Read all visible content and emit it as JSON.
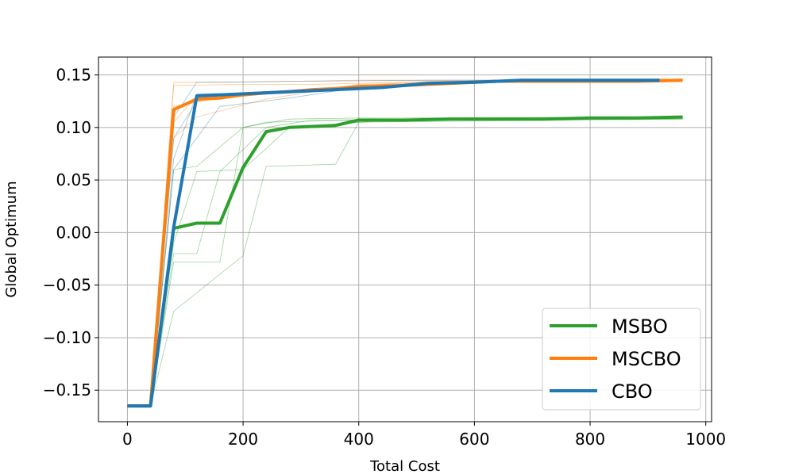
{
  "chart_data": {
    "type": "line",
    "xlabel": "Total Cost",
    "ylabel": "Global Optimum",
    "xlim": [
      -50,
      1010
    ],
    "ylim": [
      -0.18,
      0.167
    ],
    "x_ticks": [
      0,
      200,
      400,
      600,
      800,
      1000
    ],
    "x_tick_labels": [
      "0",
      "200",
      "400",
      "600",
      "800",
      "1000"
    ],
    "y_ticks": [
      -0.15,
      -0.1,
      -0.05,
      0.0,
      0.05,
      0.1,
      0.15
    ],
    "y_tick_labels": [
      "−0.15",
      "−0.10",
      "−0.05",
      "0.00",
      "0.05",
      "0.10",
      "0.15"
    ],
    "grid": true,
    "legend_position": "lower-right",
    "series": [
      {
        "name": "MSBO",
        "color": "#2ca02c",
        "x": [
          0,
          40,
          80,
          120,
          160,
          200,
          240,
          280,
          320,
          360,
          400,
          480,
          560,
          640,
          720,
          800,
          880,
          960
        ],
        "y": [
          -0.165,
          -0.165,
          0.004,
          0.009,
          0.009,
          0.062,
          0.096,
          0.1,
          0.101,
          0.102,
          0.107,
          0.107,
          0.108,
          0.108,
          0.108,
          0.109,
          0.109,
          0.11
        ]
      },
      {
        "name": "MSCBO",
        "color": "#ff7f0e",
        "x": [
          0,
          40,
          80,
          120,
          160,
          200,
          240,
          280,
          320,
          360,
          400,
          480,
          560,
          640,
          720,
          800,
          880,
          960
        ],
        "y": [
          -0.165,
          -0.165,
          0.117,
          0.127,
          0.128,
          0.131,
          0.133,
          0.134,
          0.136,
          0.137,
          0.139,
          0.14,
          0.142,
          0.144,
          0.144,
          0.144,
          0.144,
          0.145
        ]
      },
      {
        "name": "CBO",
        "color": "#1f77b4",
        "x": [
          0,
          40,
          80,
          120,
          200,
          280,
          360,
          400,
          440,
          520,
          600,
          680,
          760,
          840,
          920
        ],
        "y": [
          -0.165,
          -0.165,
          0.005,
          0.13,
          0.132,
          0.134,
          0.136,
          0.137,
          0.138,
          0.142,
          0.143,
          0.145,
          0.145,
          0.145,
          0.145
        ]
      }
    ],
    "faint_runs": [
      {
        "color": "#2ca02c",
        "x": [
          0,
          40,
          80,
          120,
          200,
          240,
          400,
          960
        ],
        "y": [
          -0.165,
          -0.165,
          0.06,
          0.063,
          0.1,
          0.105,
          0.107,
          0.108
        ]
      },
      {
        "color": "#2ca02c",
        "x": [
          0,
          40,
          80,
          160,
          200,
          280,
          400,
          960
        ],
        "y": [
          -0.165,
          -0.165,
          -0.028,
          -0.028,
          0.1,
          0.108,
          0.109,
          0.11
        ]
      },
      {
        "color": "#2ca02c",
        "x": [
          0,
          40,
          80,
          200,
          240,
          360,
          400,
          960
        ],
        "y": [
          -0.165,
          -0.165,
          -0.075,
          -0.022,
          0.063,
          0.065,
          0.105,
          0.108
        ]
      },
      {
        "color": "#2ca02c",
        "x": [
          0,
          40,
          80,
          120,
          160,
          240,
          320,
          960
        ],
        "y": [
          -0.165,
          -0.165,
          -0.02,
          -0.02,
          0.058,
          0.1,
          0.107,
          0.109
        ]
      },
      {
        "color": "#2ca02c",
        "x": [
          0,
          40,
          80,
          120,
          200,
          280,
          480,
          960
        ],
        "y": [
          -0.165,
          -0.165,
          -0.01,
          0.058,
          0.06,
          0.1,
          0.108,
          0.11
        ]
      },
      {
        "color": "#ff7f0e",
        "x": [
          0,
          40,
          80,
          160,
          280,
          400,
          600,
          960
        ],
        "y": [
          -0.165,
          -0.165,
          0.143,
          0.143,
          0.144,
          0.145,
          0.145,
          0.146
        ]
      },
      {
        "color": "#ff7f0e",
        "x": [
          0,
          40,
          80,
          120,
          240,
          400,
          560,
          960
        ],
        "y": [
          -0.165,
          -0.165,
          0.09,
          0.11,
          0.127,
          0.141,
          0.143,
          0.145
        ]
      },
      {
        "color": "#ff7f0e",
        "x": [
          0,
          40,
          80,
          120,
          200,
          360,
          520,
          960
        ],
        "y": [
          -0.165,
          -0.165,
          0.105,
          0.13,
          0.133,
          0.138,
          0.144,
          0.146
        ]
      },
      {
        "color": "#ff7f0e",
        "x": [
          0,
          40,
          80,
          200,
          320,
          480,
          680,
          960
        ],
        "y": [
          -0.165,
          -0.165,
          0.14,
          0.141,
          0.141,
          0.143,
          0.145,
          0.145
        ]
      },
      {
        "color": "#ff7f0e",
        "x": [
          0,
          40,
          80,
          160,
          280,
          440,
          640,
          960
        ],
        "y": [
          -0.165,
          -0.165,
          0.12,
          0.128,
          0.135,
          0.14,
          0.144,
          0.146
        ]
      },
      {
        "color": "#1f77b4",
        "x": [
          0,
          40,
          80,
          120,
          240,
          440,
          680,
          920
        ],
        "y": [
          -0.165,
          -0.165,
          0.07,
          0.132,
          0.133,
          0.14,
          0.145,
          0.146
        ]
      },
      {
        "color": "#1f77b4",
        "x": [
          0,
          40,
          80,
          120,
          320,
          520,
          720,
          920
        ],
        "y": [
          -0.165,
          -0.165,
          0.11,
          0.143,
          0.144,
          0.145,
          0.145,
          0.146
        ]
      },
      {
        "color": "#1f77b4",
        "x": [
          0,
          40,
          80,
          160,
          280,
          400,
          600,
          920
        ],
        "y": [
          -0.165,
          -0.165,
          0.06,
          0.12,
          0.128,
          0.138,
          0.144,
          0.145
        ]
      },
      {
        "color": "#1f77b4",
        "x": [
          0,
          40,
          80,
          120,
          200,
          360,
          560,
          920
        ],
        "y": [
          -0.165,
          -0.165,
          0.09,
          0.125,
          0.131,
          0.137,
          0.143,
          0.145
        ]
      }
    ]
  }
}
